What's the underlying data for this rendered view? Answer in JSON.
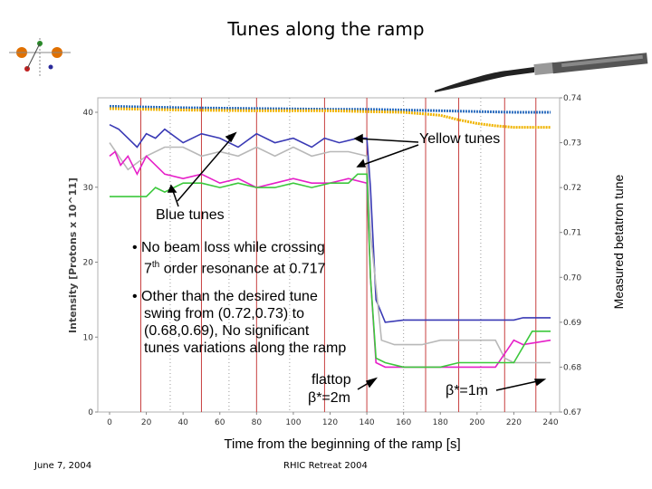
{
  "slide": {
    "title": "Tunes along the ramp",
    "footer_left": "June 7, 2004",
    "footer_center": "RHIC Retreat 2004"
  },
  "annotations": {
    "yellow_tunes": "Yellow tunes",
    "blue_tunes": "Blue tunes",
    "bullet1_line1": "• No beam loss while crossing",
    "bullet1_line2_pre": "7",
    "bullet1_line2_sup": "th",
    "bullet1_line2_post": " order resonance at 0.717",
    "bullet2_line1": "• Other than the desired tune",
    "bullet2_line2": "swing from (0.72,0.73) to",
    "bullet2_line3": "(0.68,0.69), No significant",
    "bullet2_line4": "tunes variations along the ramp",
    "flattop_line1": "flattop",
    "flattop_line2": "β*=2m",
    "beta_1m": "β*=1m"
  },
  "chart_data": {
    "type": "line",
    "xlabel": "Time from the beginning of the ramp [s]",
    "ylabel_left": "Intensity [Protons x 10^11]",
    "ylabel_right": "Measured betatron tune",
    "xlim": [
      0,
      240
    ],
    "ylim_left": [
      0,
      40
    ],
    "ylim_right": [
      0.67,
      0.74
    ],
    "x_ticks": [
      "0",
      "20",
      "40",
      "60",
      "80",
      "100",
      "120",
      "140",
      "160",
      "180",
      "200",
      "220",
      "240"
    ],
    "y_ticks_left": [
      "0",
      "10",
      "20",
      "30",
      "40"
    ],
    "y_ticks_right": [
      "0.67",
      "0.68",
      "0.69",
      "0.70",
      "0.71",
      "0.72",
      "0.73",
      "0.74"
    ],
    "vertical_markers_red": [
      17,
      50,
      80,
      117,
      140,
      172,
      190,
      215,
      232
    ],
    "vertical_markers_dotted": [
      33,
      65,
      98,
      160,
      202
    ],
    "grid": false,
    "colors": {
      "blue_intensity": "#2f6fbf",
      "yellow_intensity": "#f0b400",
      "blue_horizontal_tune": "#3a3ab5",
      "blue_vertical_tune": "#b8b8b8",
      "yellow_horizontal_tune": "#e61fc8",
      "yellow_vertical_tune": "#3cc83c",
      "markers": "#c84040",
      "frame": "#b0b0b0"
    },
    "series": [
      {
        "key": "blue_intensity",
        "axis": "left",
        "x": [
          0,
          40,
          80,
          120,
          140,
          160,
          180,
          200,
          220,
          240
        ],
        "y": [
          40.8,
          40.6,
          40.5,
          40.4,
          40.4,
          40.3,
          40.2,
          40.1,
          40.0,
          40.0
        ]
      },
      {
        "key": "yellow_intensity",
        "axis": "left",
        "x": [
          0,
          40,
          80,
          120,
          140,
          160,
          180,
          190,
          200,
          210,
          220,
          240
        ],
        "y": [
          40.5,
          40.3,
          40.2,
          40.2,
          40.1,
          40.0,
          39.6,
          39.0,
          38.5,
          38.2,
          38.0,
          38.0
        ]
      },
      {
        "key": "blue_horizontal_tune",
        "axis": "right",
        "x": [
          0,
          5,
          10,
          15,
          20,
          25,
          30,
          40,
          50,
          60,
          70,
          80,
          90,
          100,
          110,
          117,
          125,
          135,
          140,
          142,
          145,
          150,
          160,
          170,
          180,
          190,
          200,
          210,
          220,
          225,
          230,
          240
        ],
        "y": [
          0.734,
          0.733,
          0.731,
          0.729,
          0.732,
          0.731,
          0.733,
          0.73,
          0.732,
          0.731,
          0.729,
          0.732,
          0.73,
          0.731,
          0.729,
          0.731,
          0.73,
          0.731,
          0.731,
          0.72,
          0.695,
          0.69,
          0.6905,
          0.6905,
          0.6905,
          0.6905,
          0.6905,
          0.6905,
          0.6905,
          0.691,
          0.691,
          0.691
        ]
      },
      {
        "key": "blue_vertical_tune",
        "axis": "right",
        "x": [
          0,
          10,
          20,
          30,
          40,
          50,
          60,
          70,
          80,
          90,
          100,
          110,
          120,
          130,
          140,
          142,
          148,
          155,
          160,
          170,
          180,
          190,
          200,
          210,
          215,
          220,
          230,
          240
        ],
        "y": [
          0.73,
          0.724,
          0.727,
          0.729,
          0.729,
          0.727,
          0.728,
          0.727,
          0.729,
          0.727,
          0.729,
          0.727,
          0.728,
          0.728,
          0.727,
          0.71,
          0.686,
          0.685,
          0.685,
          0.685,
          0.686,
          0.686,
          0.686,
          0.686,
          0.682,
          0.681,
          0.681,
          0.681
        ]
      },
      {
        "key": "yellow_horizontal_tune",
        "axis": "right",
        "x": [
          0,
          3,
          6,
          10,
          15,
          20,
          30,
          40,
          50,
          60,
          70,
          80,
          90,
          100,
          110,
          120,
          130,
          140,
          142,
          145,
          150,
          155,
          160,
          170,
          180,
          200,
          210,
          215,
          220,
          225,
          240
        ],
        "y": [
          0.727,
          0.728,
          0.725,
          0.727,
          0.723,
          0.727,
          0.723,
          0.722,
          0.723,
          0.721,
          0.722,
          0.72,
          0.721,
          0.722,
          0.721,
          0.721,
          0.722,
          0.721,
          0.7,
          0.681,
          0.68,
          0.68,
          0.68,
          0.68,
          0.68,
          0.68,
          0.68,
          0.683,
          0.686,
          0.685,
          0.686
        ]
      },
      {
        "key": "yellow_vertical_tune",
        "axis": "right",
        "x": [
          0,
          10,
          20,
          25,
          30,
          40,
          50,
          60,
          70,
          80,
          90,
          100,
          110,
          120,
          130,
          135,
          140,
          142,
          145,
          150,
          160,
          170,
          180,
          190,
          200,
          210,
          220,
          230,
          240
        ],
        "y": [
          0.718,
          0.718,
          0.718,
          0.72,
          0.719,
          0.721,
          0.721,
          0.72,
          0.721,
          0.72,
          0.72,
          0.721,
          0.72,
          0.721,
          0.721,
          0.723,
          0.723,
          0.7,
          0.682,
          0.681,
          0.68,
          0.68,
          0.68,
          0.681,
          0.681,
          0.681,
          0.681,
          0.688,
          0.688
        ]
      }
    ]
  }
}
